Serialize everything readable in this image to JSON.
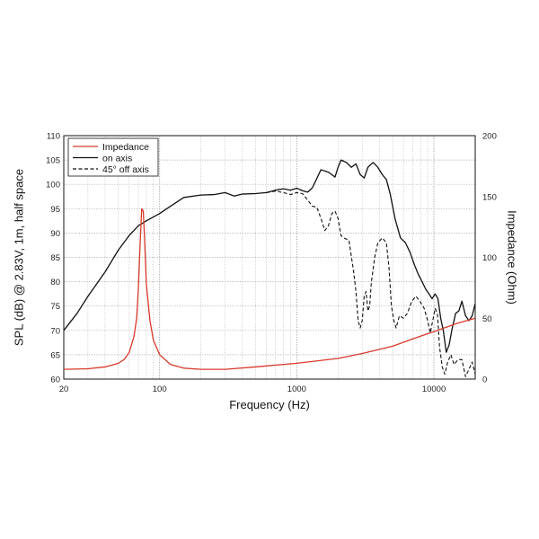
{
  "chart_data": {
    "type": "line",
    "xlabel": "Frequency (Hz)",
    "ylabel": "SPL (dB) @ 2.83V, 1m, half space",
    "y2label": "Impedance (Ohm)",
    "xscale": "log",
    "xlim": [
      20,
      20000
    ],
    "ylim": [
      60,
      110
    ],
    "y2lim": [
      0,
      200
    ],
    "x_tick_labels": [
      "20",
      "100",
      "1000",
      "10000"
    ],
    "y_tick_labels": [
      "60",
      "65",
      "70",
      "75",
      "80",
      "85",
      "90",
      "95",
      "100",
      "105",
      "110"
    ],
    "y2_tick_labels": [
      "0",
      "50",
      "100",
      "150",
      "200"
    ],
    "grid": true,
    "legend_position": "top-left",
    "series": [
      {
        "name": "Impedance",
        "axis": "right",
        "color": "#d8392b",
        "style": "solid",
        "points": [
          [
            20,
            8
          ],
          [
            30,
            8.5
          ],
          [
            40,
            10
          ],
          [
            50,
            13
          ],
          [
            55,
            16
          ],
          [
            60,
            22
          ],
          [
            65,
            35
          ],
          [
            68,
            50
          ],
          [
            70,
            75
          ],
          [
            72,
            110
          ],
          [
            74,
            140
          ],
          [
            76,
            138
          ],
          [
            78,
            110
          ],
          [
            80,
            78
          ],
          [
            85,
            48
          ],
          [
            90,
            32
          ],
          [
            100,
            20
          ],
          [
            120,
            12
          ],
          [
            150,
            9
          ],
          [
            200,
            8
          ],
          [
            300,
            8
          ],
          [
            500,
            10
          ],
          [
            1000,
            13
          ],
          [
            2000,
            17
          ],
          [
            3000,
            21
          ],
          [
            5000,
            27
          ],
          [
            7000,
            33
          ],
          [
            10000,
            39
          ],
          [
            15000,
            46
          ],
          [
            20000,
            50
          ]
        ]
      },
      {
        "name": "on axis",
        "axis": "left",
        "color": "#111111",
        "style": "solid",
        "points": [
          [
            20,
            70
          ],
          [
            25,
            73.5
          ],
          [
            30,
            77
          ],
          [
            40,
            82
          ],
          [
            50,
            86.5
          ],
          [
            60,
            89.5
          ],
          [
            70,
            91.5
          ],
          [
            80,
            92.5
          ],
          [
            100,
            94
          ],
          [
            120,
            95.5
          ],
          [
            150,
            97.3
          ],
          [
            200,
            97.8
          ],
          [
            250,
            97.9
          ],
          [
            300,
            98.3
          ],
          [
            350,
            97.6
          ],
          [
            400,
            98
          ],
          [
            500,
            98.1
          ],
          [
            600,
            98.3
          ],
          [
            700,
            98.8
          ],
          [
            800,
            99.1
          ],
          [
            900,
            98.8
          ],
          [
            1000,
            99.2
          ],
          [
            1100,
            98.7
          ],
          [
            1200,
            98.4
          ],
          [
            1300,
            99.3
          ],
          [
            1500,
            103
          ],
          [
            1700,
            102.5
          ],
          [
            1900,
            101.5
          ],
          [
            2000,
            103.5
          ],
          [
            2100,
            105
          ],
          [
            2300,
            104.5
          ],
          [
            2500,
            103.5
          ],
          [
            2700,
            104.2
          ],
          [
            2900,
            102
          ],
          [
            3100,
            101.3
          ],
          [
            3300,
            103.5
          ],
          [
            3600,
            104.5
          ],
          [
            3900,
            103.5
          ],
          [
            4200,
            102
          ],
          [
            4500,
            101
          ],
          [
            4800,
            98
          ],
          [
            5200,
            93
          ],
          [
            5700,
            89
          ],
          [
            6200,
            88
          ],
          [
            6700,
            86
          ],
          [
            7200,
            83.5
          ],
          [
            7700,
            81.5
          ],
          [
            8200,
            80
          ],
          [
            8700,
            78.5
          ],
          [
            9200,
            77.5
          ],
          [
            9700,
            76.5
          ],
          [
            10200,
            77.5
          ],
          [
            10700,
            76.5
          ],
          [
            11200,
            72.5
          ],
          [
            11700,
            70
          ],
          [
            12300,
            65.5
          ],
          [
            12900,
            67
          ],
          [
            13600,
            70.5
          ],
          [
            14400,
            73.5
          ],
          [
            15200,
            74
          ],
          [
            16000,
            76
          ],
          [
            17000,
            73
          ],
          [
            18000,
            72
          ],
          [
            19000,
            73
          ],
          [
            20000,
            75.5
          ]
        ]
      },
      {
        "name": "45° off axis",
        "axis": "left",
        "color": "#111111",
        "style": "dashed",
        "points": [
          [
            600,
            98.3
          ],
          [
            700,
            98.6
          ],
          [
            800,
            98.3
          ],
          [
            900,
            97.9
          ],
          [
            1000,
            98.3
          ],
          [
            1100,
            98.1
          ],
          [
            1200,
            96.8
          ],
          [
            1300,
            95.5
          ],
          [
            1400,
            95.3
          ],
          [
            1500,
            93
          ],
          [
            1600,
            90.5
          ],
          [
            1700,
            91.5
          ],
          [
            1800,
            94
          ],
          [
            1900,
            94.5
          ],
          [
            2000,
            93
          ],
          [
            2100,
            89.5
          ],
          [
            2200,
            89
          ],
          [
            2400,
            88.5
          ],
          [
            2600,
            82
          ],
          [
            2700,
            78
          ],
          [
            2800,
            72
          ],
          [
            2900,
            70.5
          ],
          [
            3000,
            72
          ],
          [
            3100,
            77
          ],
          [
            3200,
            78
          ],
          [
            3300,
            74
          ],
          [
            3400,
            75
          ],
          [
            3500,
            80
          ],
          [
            3700,
            85
          ],
          [
            3900,
            88
          ],
          [
            4200,
            89
          ],
          [
            4500,
            88
          ],
          [
            4700,
            83
          ],
          [
            4900,
            75
          ],
          [
            5100,
            72
          ],
          [
            5300,
            70.5
          ],
          [
            5600,
            73
          ],
          [
            6000,
            72.5
          ],
          [
            6400,
            73.5
          ],
          [
            6900,
            76
          ],
          [
            7400,
            77
          ],
          [
            7900,
            76
          ],
          [
            8500,
            74.5
          ],
          [
            9000,
            72
          ],
          [
            9400,
            69.5
          ],
          [
            9800,
            72
          ],
          [
            10200,
            74.5
          ],
          [
            10600,
            73.5
          ],
          [
            11000,
            66.5
          ],
          [
            11500,
            62.5
          ],
          [
            12000,
            61
          ],
          [
            12600,
            63.5
          ],
          [
            13300,
            65
          ],
          [
            14000,
            63
          ],
          [
            15000,
            64
          ],
          [
            16000,
            64
          ],
          [
            17000,
            60.5
          ],
          [
            18000,
            62
          ],
          [
            19000,
            63.5
          ],
          [
            20000,
            61
          ]
        ]
      }
    ]
  }
}
